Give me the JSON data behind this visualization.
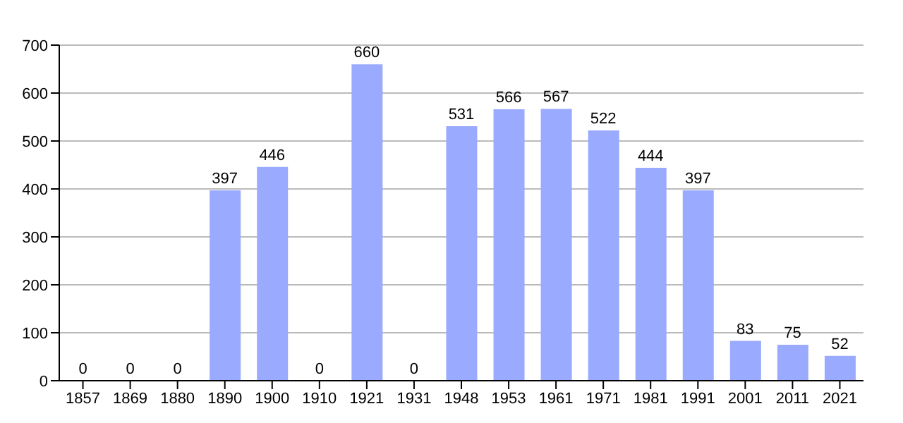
{
  "chart_data": {
    "type": "bar",
    "categories": [
      "1857",
      "1869",
      "1880",
      "1890",
      "1900",
      "1910",
      "1921",
      "1931",
      "1948",
      "1953",
      "1961",
      "1971",
      "1981",
      "1991",
      "2001",
      "2011",
      "2021"
    ],
    "values": [
      0,
      0,
      0,
      397,
      446,
      0,
      660,
      0,
      531,
      566,
      567,
      522,
      444,
      397,
      83,
      75,
      52
    ],
    "color": "#99aaff",
    "ylim": [
      0,
      700
    ],
    "yticks": [
      0,
      100,
      200,
      300,
      400,
      500,
      600,
      700
    ],
    "grid": "y",
    "data_labels": true
  }
}
